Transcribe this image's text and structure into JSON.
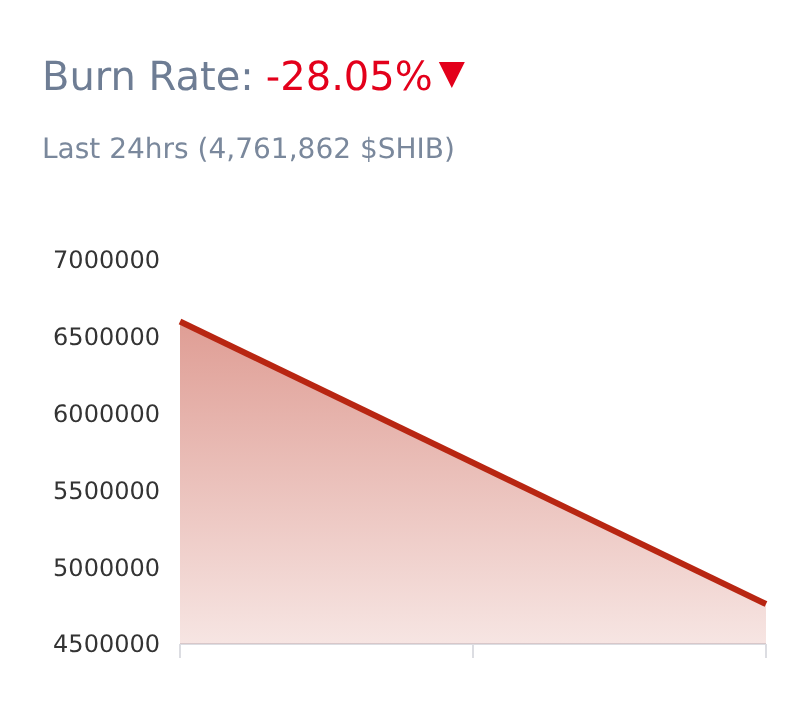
{
  "chart_data": {
    "type": "area",
    "title": "Burn Rate:",
    "subtitle": "Last 24hrs (4,761,862 $SHIB)",
    "annotations": [
      "-28.05%"
    ],
    "categories": [
      null,
      null,
      null
    ],
    "series": [
      {
        "color": "#b82612",
        "values": [
          6600000,
          5680000,
          4760000
        ]
      }
    ],
    "ylim": [
      4500000,
      7000000
    ],
    "yticks": [
      4500000,
      5000000,
      5500000,
      6000000,
      6500000,
      7000000
    ],
    "grid": false
  }
}
